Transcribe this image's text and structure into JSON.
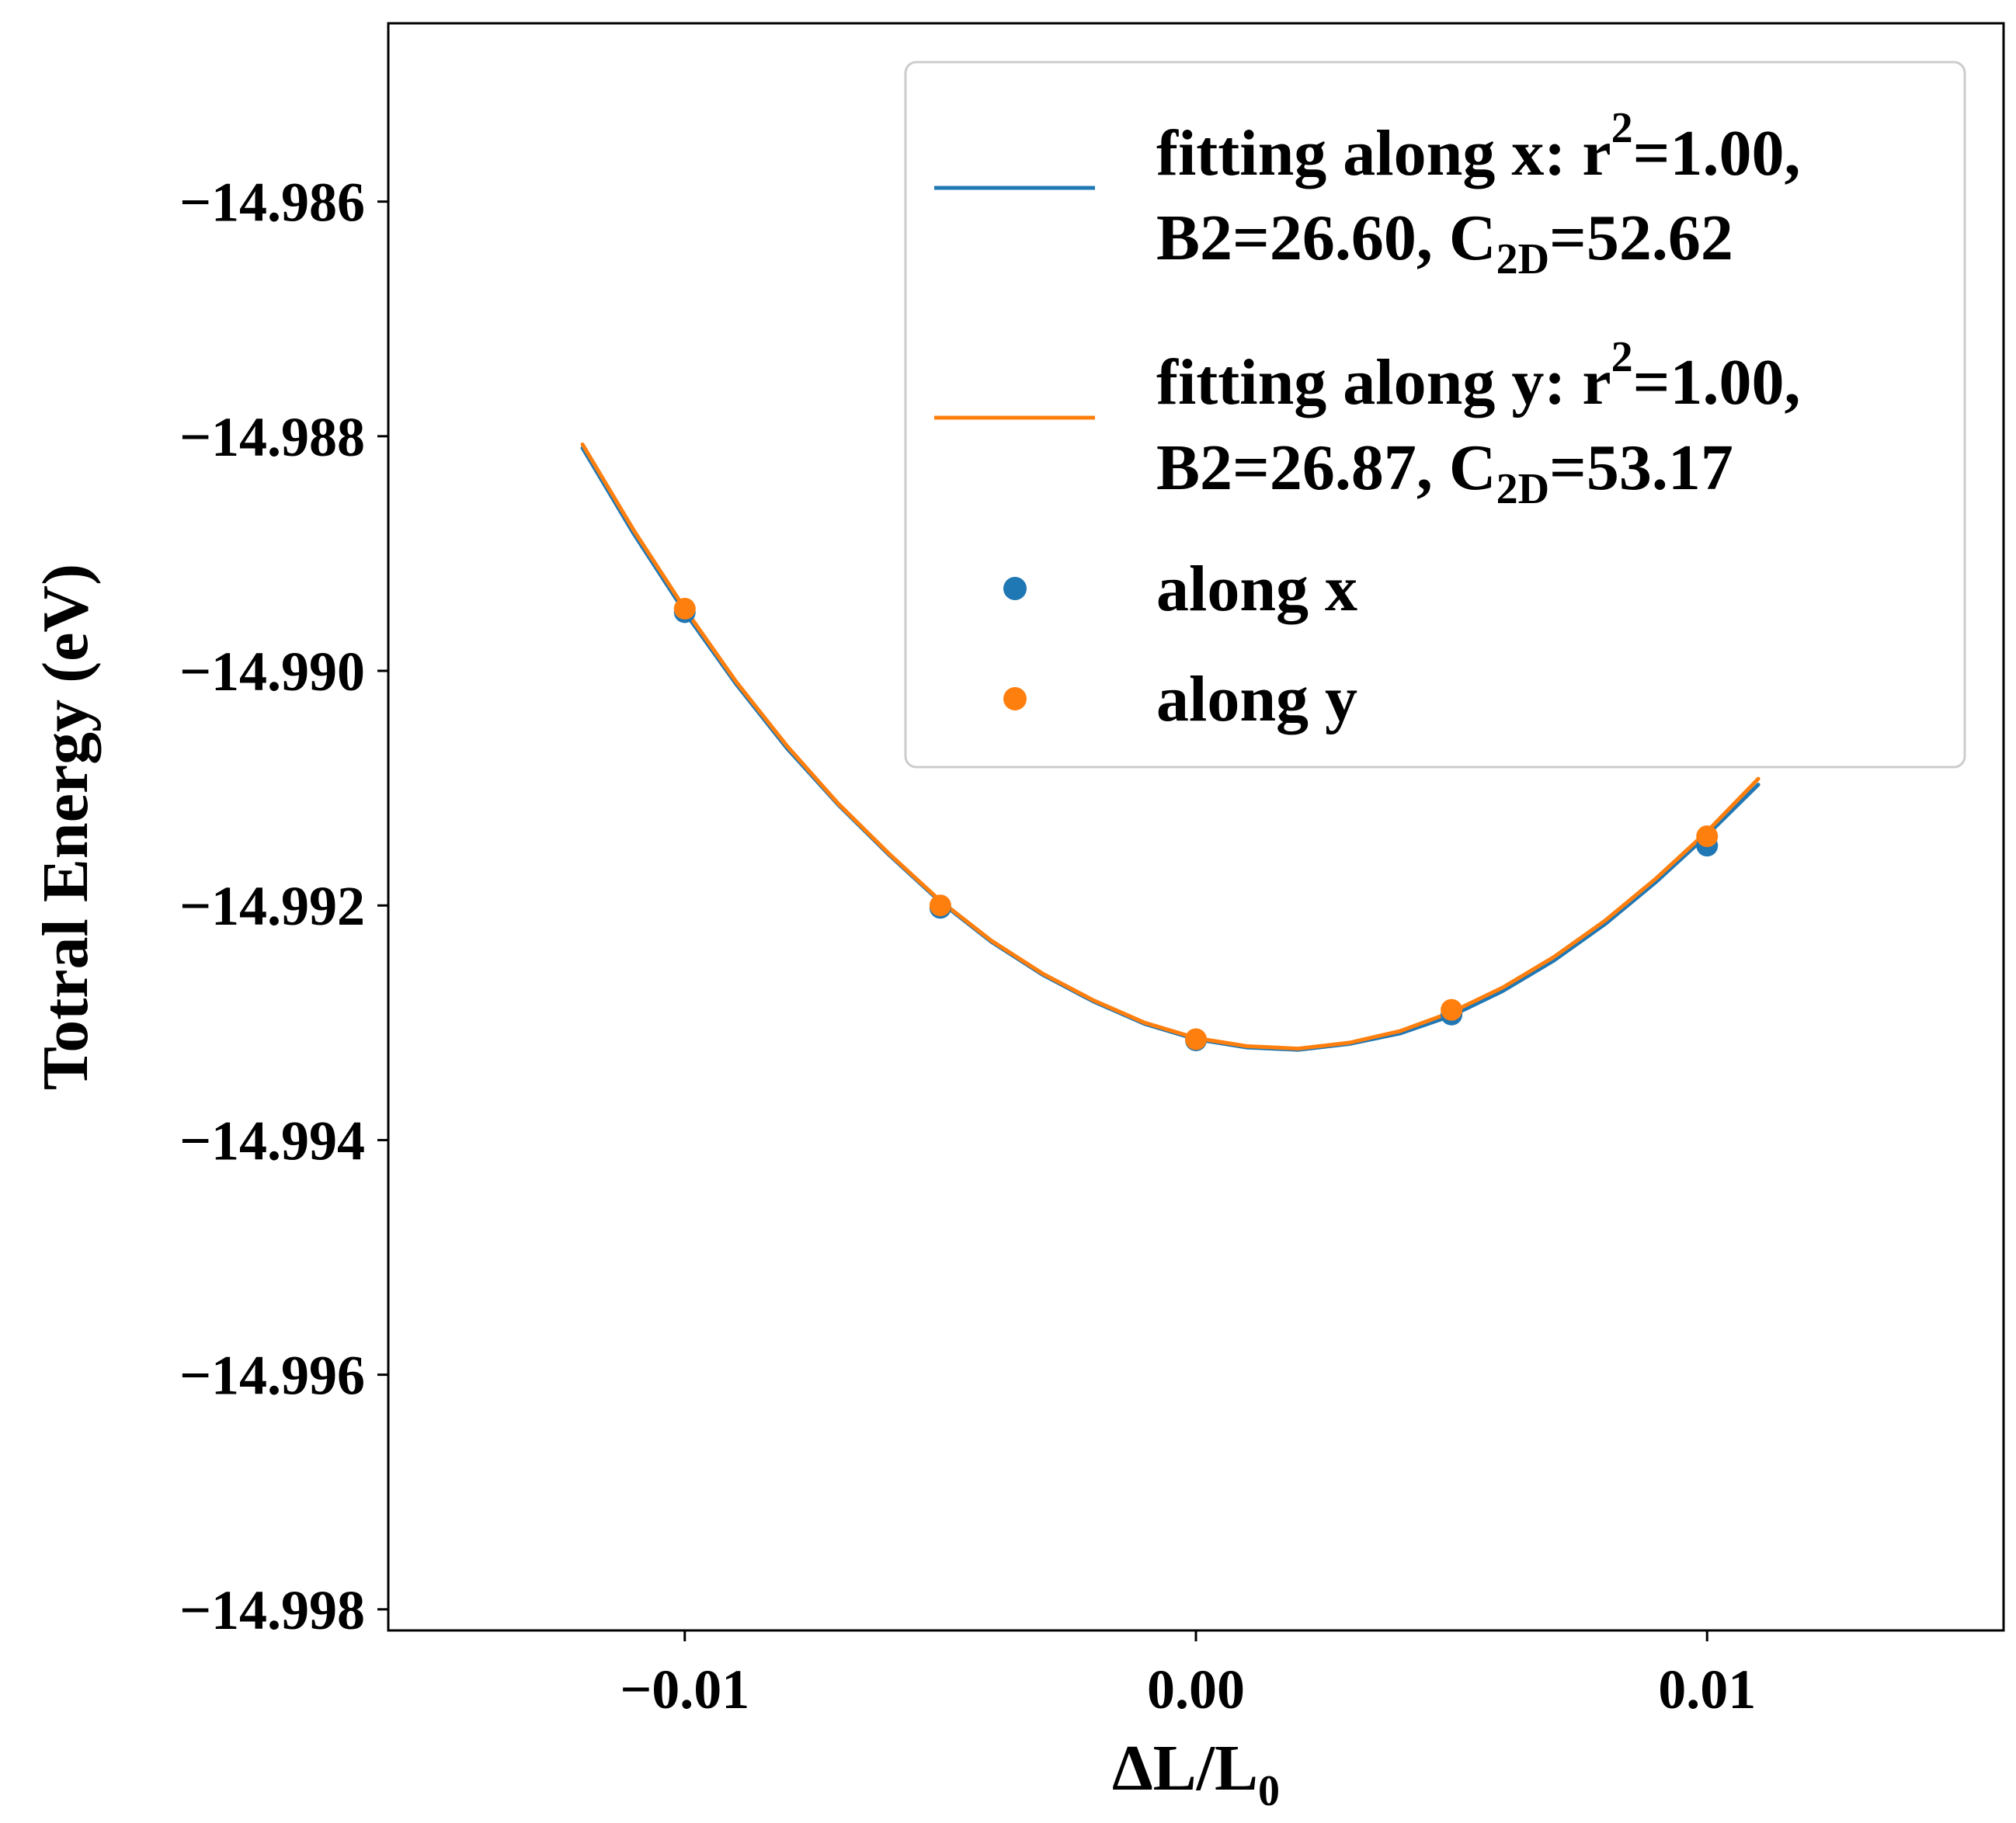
{
  "chart_data": {
    "type": "scatter+line",
    "xlabel": "ΔL/L",
    "xlabel_sub": "0",
    "ylabel": "Totral Energy (eV)",
    "xlim": [
      -0.0158,
      0.0158
    ],
    "ylim": [
      -14.99818,
      -14.98448
    ],
    "x_ticks": [
      {
        "value": -0.01,
        "label": "−0.01"
      },
      {
        "value": 0.0,
        "label": "0.00"
      },
      {
        "value": 0.01,
        "label": "0.01"
      }
    ],
    "y_ticks": [
      {
        "value": -14.986,
        "label": "−14.986"
      },
      {
        "value": -14.988,
        "label": "−14.988"
      },
      {
        "value": -14.99,
        "label": "−14.990"
      },
      {
        "value": -14.992,
        "label": "−14.992"
      },
      {
        "value": -14.994,
        "label": "−14.994"
      },
      {
        "value": -14.996,
        "label": "−14.996"
      },
      {
        "value": -14.998,
        "label": "−14.998"
      }
    ],
    "fits": [
      {
        "name": "fitting along x",
        "color": "#1f77b4",
        "x": [
          -0.012,
          -0.011,
          -0.01,
          -0.009,
          -0.008,
          -0.007,
          -0.006,
          -0.005,
          -0.004,
          -0.003,
          -0.002,
          -0.001,
          0.0,
          0.001,
          0.002,
          0.003,
          0.004,
          0.005,
          0.006,
          0.007,
          0.008,
          0.009,
          0.01,
          0.011
        ],
        "y": [
          -14.9881,
          -14.98883,
          -14.9895,
          -14.99011,
          -14.99066,
          -14.99114,
          -14.99157,
          -14.99197,
          -14.99231,
          -14.99259,
          -14.99282,
          -14.99301,
          -14.99314,
          -14.99321,
          -14.99323,
          -14.99318,
          -14.99309,
          -14.99294,
          -14.99273,
          -14.99247,
          -14.99216,
          -14.9918,
          -14.9914,
          -14.99097
        ]
      },
      {
        "name": "fitting along y",
        "color": "#ff7f0e",
        "x": [
          -0.012,
          -0.011,
          -0.01,
          -0.009,
          -0.008,
          -0.007,
          -0.006,
          -0.005,
          -0.004,
          -0.003,
          -0.002,
          -0.001,
          0.0,
          0.001,
          0.002,
          0.003,
          0.004,
          0.005,
          0.006,
          0.007,
          0.008,
          0.009,
          0.01,
          0.011
        ],
        "y": [
          -14.98807,
          -14.9888,
          -14.98947,
          -14.99009,
          -14.99064,
          -14.99113,
          -14.99156,
          -14.99196,
          -14.9923,
          -14.99258,
          -14.99281,
          -14.993,
          -14.99313,
          -14.9932,
          -14.99322,
          -14.99317,
          -14.99307,
          -14.99291,
          -14.9927,
          -14.99244,
          -14.99213,
          -14.99177,
          -14.99137,
          -14.99092
        ]
      }
    ],
    "points": [
      {
        "name": "along x",
        "color": "#1f77b4",
        "x": [
          -0.01,
          -0.005,
          0.0,
          0.005,
          0.01
        ],
        "y": [
          -14.9895,
          -14.99202,
          -14.99315,
          -14.99293,
          -14.99149
        ]
      }
    ],
    "points_y": {
      "name": "along y",
      "color": "#ff7f0e",
      "x": [
        -0.01,
        -0.005,
        0.0,
        0.005,
        0.01
      ],
      "y": [
        -14.98947,
        -14.992,
        -14.99314,
        -14.99289,
        -14.99141
      ]
    },
    "legend": {
      "placement": "top-right",
      "fit_x": {
        "line1_a": "fitting along x: r",
        "line1_sup": "2",
        "line1_b": "=1.00,",
        "line2_a": "B2=26.60, C",
        "line2_sub": "2D",
        "line2_b": "=52.62"
      },
      "fit_y": {
        "line1_a": "fitting along y: r",
        "line1_sup": "2",
        "line1_b": "=1.00,",
        "line2_a": "B2=26.87, C",
        "line2_sub": "2D",
        "line2_b": "=53.17"
      },
      "pts_x": "along x",
      "pts_y": "along y"
    }
  }
}
